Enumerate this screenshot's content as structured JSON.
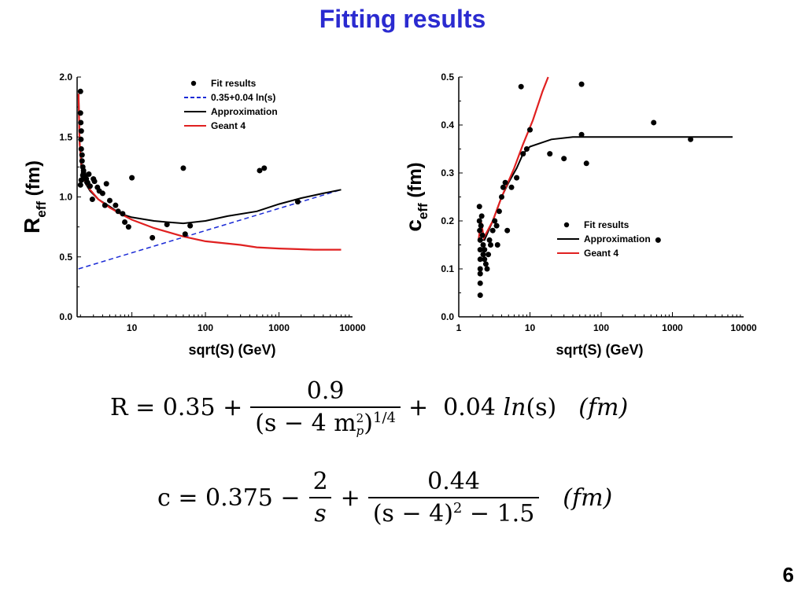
{
  "slide": {
    "title": "Fitting results",
    "page_number": "6"
  },
  "chart_data": [
    {
      "type": "scatter",
      "ylabel_main": "R",
      "ylabel_sub": "eff",
      "ylabel_unit": "(fm)",
      "xlabel": "sqrt(S) (GeV)",
      "xscale": "log",
      "xlim": [
        1.8,
        10000
      ],
      "ylim": [
        0.0,
        2.0
      ],
      "xticks": [
        10,
        100,
        1000,
        10000
      ],
      "xtick_labels": [
        "10",
        "100",
        "1000",
        "10000"
      ],
      "yticks": [
        0.0,
        0.5,
        1.0,
        1.5,
        2.0
      ],
      "ytick_labels": [
        "0.0",
        "0.5",
        "1.0",
        "1.5",
        "2.0"
      ],
      "legend_position": "top-right",
      "legend": [
        "Fit results",
        "0.35+0.04 ln(s)",
        "Approximation",
        "Geant 4"
      ],
      "colors": {
        "approximation": "#000000",
        "dashed": "#1a2ad6",
        "geant": "#e02020",
        "points": "#000000"
      },
      "points": [
        [
          2.0,
          1.88
        ],
        [
          2.0,
          1.7
        ],
        [
          2.02,
          1.62
        ],
        [
          2.05,
          1.55
        ],
        [
          2.03,
          1.48
        ],
        [
          2.05,
          1.4
        ],
        [
          2.1,
          1.35
        ],
        [
          2.1,
          1.3
        ],
        [
          2.15,
          1.25
        ],
        [
          2.2,
          1.22
        ],
        [
          2.15,
          1.18
        ],
        [
          2.05,
          1.14
        ],
        [
          2.0,
          1.1
        ],
        [
          2.2,
          1.2
        ],
        [
          2.3,
          1.17
        ],
        [
          2.4,
          1.15
        ],
        [
          2.5,
          1.12
        ],
        [
          2.6,
          1.19
        ],
        [
          2.7,
          1.09
        ],
        [
          2.9,
          0.98
        ],
        [
          3.0,
          1.15
        ],
        [
          3.1,
          1.13
        ],
        [
          3.4,
          1.08
        ],
        [
          3.6,
          1.05
        ],
        [
          4.0,
          1.03
        ],
        [
          4.3,
          0.93
        ],
        [
          4.5,
          1.11
        ],
        [
          5.0,
          0.97
        ],
        [
          6.0,
          0.93
        ],
        [
          6.5,
          0.88
        ],
        [
          7.5,
          0.86
        ],
        [
          8.0,
          0.79
        ],
        [
          9.0,
          0.75
        ],
        [
          10.0,
          1.16
        ],
        [
          19.0,
          0.66
        ],
        [
          30.0,
          0.77
        ],
        [
          50.0,
          1.24
        ],
        [
          53.0,
          0.69
        ],
        [
          62.0,
          0.76
        ],
        [
          546.0,
          1.22
        ],
        [
          630.0,
          1.24
        ],
        [
          1800.0,
          0.96
        ]
      ],
      "approximation_curve": [
        [
          1.88,
          1.86
        ],
        [
          1.95,
          1.45
        ],
        [
          2.05,
          1.25
        ],
        [
          2.3,
          1.12
        ],
        [
          2.7,
          1.05
        ],
        [
          3.5,
          0.98
        ],
        [
          5.0,
          0.92
        ],
        [
          7.0,
          0.86
        ],
        [
          10.0,
          0.83
        ],
        [
          20.0,
          0.8
        ],
        [
          30.0,
          0.79
        ],
        [
          50.0,
          0.78
        ],
        [
          100.0,
          0.8
        ],
        [
          200.0,
          0.84
        ],
        [
          500.0,
          0.88
        ],
        [
          1000.0,
          0.94
        ],
        [
          2000.0,
          0.99
        ],
        [
          4000.0,
          1.03
        ],
        [
          7000.0,
          1.06
        ]
      ],
      "geant_curve": [
        [
          1.88,
          1.86
        ],
        [
          1.95,
          1.45
        ],
        [
          2.05,
          1.28
        ],
        [
          2.3,
          1.14
        ],
        [
          2.7,
          1.06
        ],
        [
          3.5,
          0.98
        ],
        [
          5.0,
          0.91
        ],
        [
          7.0,
          0.86
        ],
        [
          10.0,
          0.81
        ],
        [
          20.0,
          0.74
        ],
        [
          50.0,
          0.67
        ],
        [
          100.0,
          0.63
        ],
        [
          300.0,
          0.6
        ],
        [
          500.0,
          0.58
        ],
        [
          1000.0,
          0.57
        ],
        [
          3000.0,
          0.56
        ],
        [
          7000.0,
          0.56
        ]
      ],
      "dashed_line": [
        [
          1.88,
          0.4
        ],
        [
          7000.0,
          1.06
        ]
      ]
    },
    {
      "type": "scatter",
      "ylabel_main": "c",
      "ylabel_sub": "eff",
      "ylabel_unit": "(fm)",
      "xlabel": "sqrt(S) (GeV)",
      "xscale": "log",
      "xlim": [
        1,
        10000
      ],
      "ylim": [
        0.0,
        0.5
      ],
      "xticks": [
        1,
        10,
        100,
        1000,
        10000
      ],
      "xtick_labels": [
        "1",
        "10",
        "100",
        "1000",
        "10000"
      ],
      "yticks": [
        0.0,
        0.1,
        0.2,
        0.3,
        0.4,
        0.5
      ],
      "ytick_labels": [
        "0.0",
        "0.1",
        "0.2",
        "0.3",
        "0.4",
        "0.5"
      ],
      "legend_position": "lower-right",
      "legend": [
        "Fit results",
        "Approximation",
        "Geant 4"
      ],
      "colors": {
        "approximation": "#000000",
        "geant": "#e02020",
        "points": "#000000"
      },
      "points": [
        [
          1.95,
          0.23
        ],
        [
          1.95,
          0.2
        ],
        [
          1.97,
          0.18
        ],
        [
          2.0,
          0.16
        ],
        [
          2.0,
          0.14
        ],
        [
          2.0,
          0.12
        ],
        [
          2.0,
          0.1
        ],
        [
          2.0,
          0.09
        ],
        [
          2.0,
          0.07
        ],
        [
          2.0,
          0.045
        ],
        [
          2.05,
          0.19
        ],
        [
          2.1,
          0.21
        ],
        [
          2.15,
          0.17
        ],
        [
          2.2,
          0.15
        ],
        [
          2.2,
          0.13
        ],
        [
          2.3,
          0.12
        ],
        [
          2.3,
          0.14
        ],
        [
          2.4,
          0.11
        ],
        [
          2.5,
          0.1
        ],
        [
          2.6,
          0.13
        ],
        [
          2.7,
          0.16
        ],
        [
          2.8,
          0.15
        ],
        [
          3.0,
          0.18
        ],
        [
          3.2,
          0.2
        ],
        [
          3.4,
          0.19
        ],
        [
          3.5,
          0.15
        ],
        [
          3.7,
          0.22
        ],
        [
          4.0,
          0.25
        ],
        [
          4.2,
          0.27
        ],
        [
          4.5,
          0.28
        ],
        [
          4.8,
          0.18
        ],
        [
          5.5,
          0.27
        ],
        [
          6.5,
          0.29
        ],
        [
          7.5,
          0.48
        ],
        [
          8.0,
          0.34
        ],
        [
          9.0,
          0.35
        ],
        [
          10.0,
          0.39
        ],
        [
          19.0,
          0.34
        ],
        [
          30.0,
          0.33
        ],
        [
          53.0,
          0.38
        ],
        [
          53.0,
          0.485
        ],
        [
          62.0,
          0.32
        ],
        [
          546.0,
          0.405
        ],
        [
          630.0,
          0.16
        ],
        [
          1800.0,
          0.37
        ]
      ],
      "approximation_curve": [
        [
          2.05,
          0.16
        ],
        [
          2.3,
          0.16
        ],
        [
          3.0,
          0.2
        ],
        [
          4.0,
          0.25
        ],
        [
          5.0,
          0.28
        ],
        [
          6.5,
          0.31
        ],
        [
          8.0,
          0.34
        ],
        [
          10.0,
          0.355
        ],
        [
          20.0,
          0.37
        ],
        [
          40.0,
          0.375
        ],
        [
          100.0,
          0.375
        ],
        [
          1000.0,
          0.375
        ],
        [
          7000.0,
          0.375
        ]
      ],
      "geant_curve": [
        [
          1.9,
          0.16
        ],
        [
          2.05,
          0.2
        ],
        [
          2.25,
          0.165
        ],
        [
          3.0,
          0.2
        ],
        [
          4.0,
          0.25
        ],
        [
          6.0,
          0.31
        ],
        [
          8.0,
          0.36
        ],
        [
          11.0,
          0.41
        ],
        [
          15.0,
          0.47
        ],
        [
          18.0,
          0.5
        ]
      ]
    }
  ],
  "formulas": {
    "R": {
      "lhs": "R = 0.35  +",
      "frac_num": "0.9",
      "frac_den_a": "(s − 4 m",
      "frac_den_sup": "2",
      "frac_den_sub": "p",
      "frac_den_b": ")",
      "frac_den_pow": "1/4",
      "rest": "+  0.04 ",
      "ln": "ln",
      "ln_arg": "(s)",
      "unit": "(fm)"
    },
    "c": {
      "lhs": "c = 0.375  −",
      "frac1_num": "2",
      "frac1_den": "s",
      "plus": "+",
      "frac2_num": "0.44",
      "frac2_den_a": "(s − 4)",
      "frac2_den_sup": "2",
      "frac2_den_b": " − 1.5",
      "unit": "(fm)"
    }
  }
}
